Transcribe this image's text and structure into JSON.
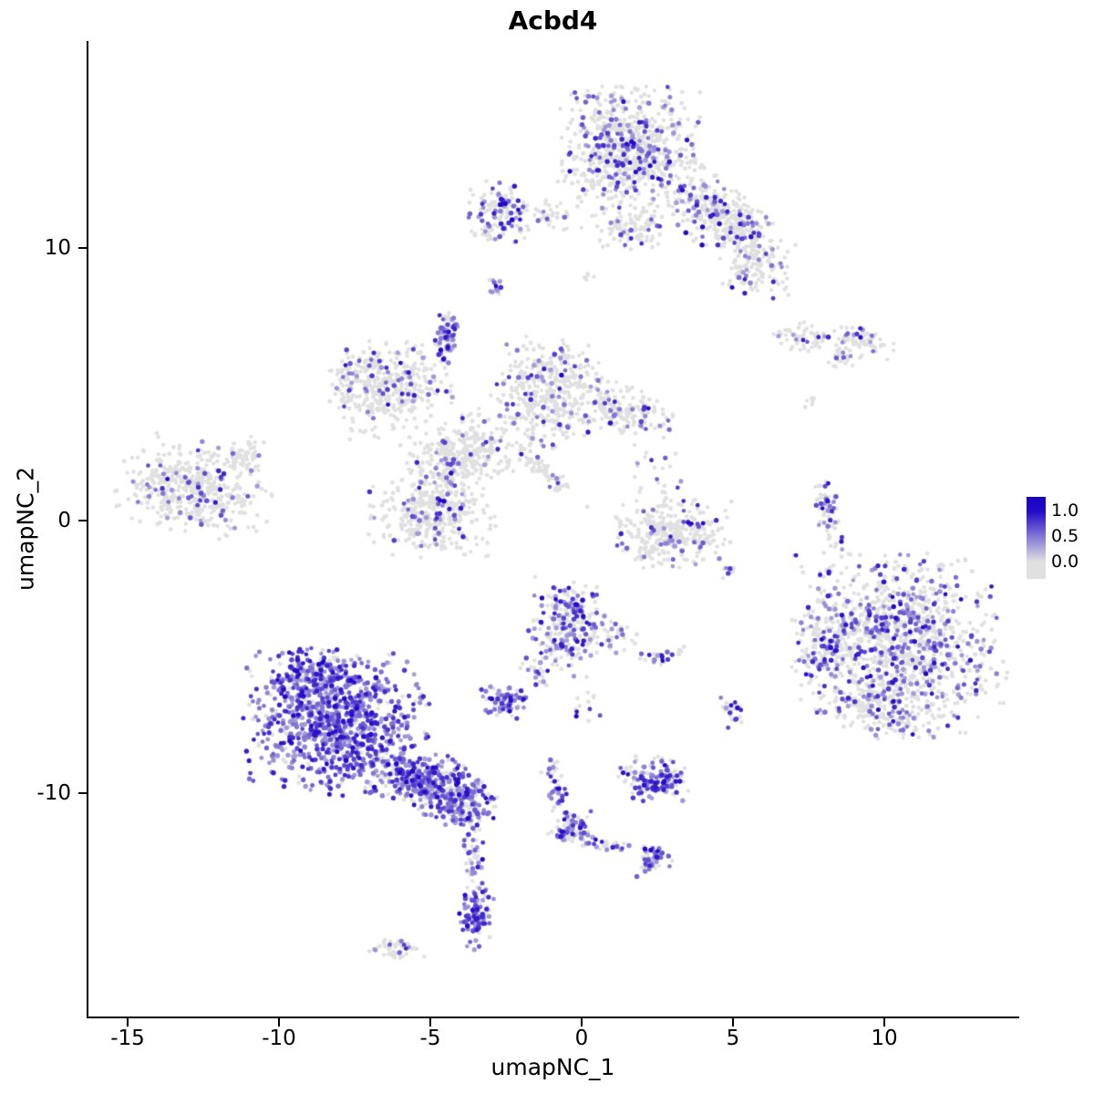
{
  "chart_data": {
    "type": "scatter",
    "title": "Acbd4",
    "xlabel": "umapNC_1",
    "ylabel": "umapNC_2",
    "xlim": [
      -16.3,
      14.4
    ],
    "ylim": [
      -18.2,
      17.6
    ],
    "x_ticks": [
      -15,
      -10,
      -5,
      0,
      5,
      10
    ],
    "y_ticks": [
      -10,
      0,
      10
    ],
    "grid": false,
    "point_color_low": "#E0E0E0",
    "point_color_high": "#2308C8",
    "legend": {
      "position": "right",
      "labels": [
        "1.0",
        "0.5",
        "0.0"
      ],
      "low_color": "#E0E0E0",
      "high_color": "#2308C8"
    },
    "clusters": [
      {
        "name": "top-center-lobe",
        "cx": 1.6,
        "cy": 13.6,
        "sx": 1.05,
        "sy": 1.05,
        "rot": 0,
        "n": 750,
        "p": 0.22
      },
      {
        "name": "top-right-arm",
        "cx": 4.7,
        "cy": 11.0,
        "sx": 1.1,
        "sy": 0.55,
        "rot": -40,
        "n": 380,
        "p": 0.18
      },
      {
        "name": "top-right-arm-end",
        "cx": 5.7,
        "cy": 9.3,
        "sx": 0.5,
        "sy": 0.55,
        "rot": 0,
        "n": 110,
        "p": 0.2
      },
      {
        "name": "top-lower-neck",
        "cx": 1.6,
        "cy": 10.7,
        "sx": 0.5,
        "sy": 0.4,
        "rot": 0,
        "n": 100,
        "p": 0.15
      },
      {
        "name": "top-left-satellite",
        "cx": -2.7,
        "cy": 11.2,
        "sx": 0.45,
        "sy": 0.55,
        "rot": 0,
        "n": 140,
        "p": 0.3
      },
      {
        "name": "top-bridge",
        "cx": -1.2,
        "cy": 11.2,
        "sx": 0.7,
        "sy": 0.3,
        "rot": 0,
        "n": 50,
        "p": 0.2
      },
      {
        "name": "tiny-purple-dot",
        "cx": -2.85,
        "cy": 8.65,
        "sx": 0.12,
        "sy": 0.2,
        "rot": 0,
        "n": 12,
        "p": 0.6
      },
      {
        "name": "tiny-grey-pair",
        "cx": 0.2,
        "cy": 8.9,
        "sx": 0.1,
        "sy": 0.12,
        "rot": 0,
        "n": 5,
        "p": 0
      },
      {
        "name": "right-small-a",
        "cx": 7.3,
        "cy": 6.7,
        "sx": 0.5,
        "sy": 0.25,
        "rot": -8,
        "n": 55,
        "p": 0.15
      },
      {
        "name": "right-small-b",
        "cx": 9.3,
        "cy": 6.6,
        "sx": 0.55,
        "sy": 0.3,
        "rot": -8,
        "n": 65,
        "p": 0.18
      },
      {
        "name": "right-small-c",
        "cx": 8.55,
        "cy": 5.95,
        "sx": 0.2,
        "sy": 0.18,
        "rot": 0,
        "n": 20,
        "p": 0.15
      },
      {
        "name": "right-tiny-dots",
        "cx": 7.6,
        "cy": 4.4,
        "sx": 0.12,
        "sy": 0.18,
        "rot": 0,
        "n": 6,
        "p": 0
      },
      {
        "name": "central-left-lobe",
        "cx": -6.4,
        "cy": 4.9,
        "sx": 0.9,
        "sy": 0.75,
        "rot": 15,
        "n": 380,
        "p": 0.13
      },
      {
        "name": "central-spike",
        "cx": -4.5,
        "cy": 6.8,
        "sx": 0.18,
        "sy": 0.5,
        "rot": 0,
        "n": 90,
        "p": 0.55
      },
      {
        "name": "central-mid-lobe",
        "cx": -1.1,
        "cy": 4.7,
        "sx": 0.85,
        "sy": 0.9,
        "rot": 0,
        "n": 420,
        "p": 0.12
      },
      {
        "name": "central-right-arm",
        "cx": 1.4,
        "cy": 4.1,
        "sx": 0.75,
        "sy": 0.4,
        "rot": -12,
        "n": 160,
        "p": 0.15
      },
      {
        "name": "central-connector",
        "cx": -3.9,
        "cy": 2.5,
        "sx": 0.85,
        "sy": 0.6,
        "rot": 20,
        "n": 300,
        "p": 0.1
      },
      {
        "name": "central-lower-lobe",
        "cx": -4.9,
        "cy": 0.3,
        "sx": 0.95,
        "sy": 0.75,
        "rot": 0,
        "n": 380,
        "p": 0.14
      },
      {
        "name": "central-diag-strand",
        "cx": -1.3,
        "cy": 1.9,
        "sx": 0.9,
        "sy": 0.15,
        "rot": -45,
        "n": 70,
        "p": 0.08
      },
      {
        "name": "central-upper-left-arm",
        "cx": -7.4,
        "cy": 5.5,
        "sx": 0.55,
        "sy": 0.4,
        "rot": 30,
        "n": 60,
        "p": 0.12
      },
      {
        "name": "far-left-lobe",
        "cx": -12.8,
        "cy": 1.2,
        "sx": 1.15,
        "sy": 0.75,
        "rot": -12,
        "n": 480,
        "p": 0.12
      },
      {
        "name": "far-left-arm",
        "cx": -11.1,
        "cy": 2.4,
        "sx": 0.4,
        "sy": 0.25,
        "rot": 40,
        "n": 40,
        "p": 0.1
      },
      {
        "name": "mid-right-crescent",
        "cx": 3.0,
        "cy": -0.5,
        "sx": 0.85,
        "sy": 0.55,
        "rot": 0,
        "n": 320,
        "p": 0.12
      },
      {
        "name": "mid-right-sparse",
        "cx": 2.4,
        "cy": 1.6,
        "sx": 0.5,
        "sy": 0.9,
        "rot": 0,
        "n": 35,
        "p": 0.25
      },
      {
        "name": "right-strip",
        "cx": 8.2,
        "cy": 0.2,
        "sx": 0.18,
        "sy": 0.75,
        "rot": 8,
        "n": 70,
        "p": 0.35
      },
      {
        "name": "right-strip-tiny",
        "cx": 8.0,
        "cy": -1.9,
        "sx": 0.13,
        "sy": 0.13,
        "rot": 0,
        "n": 8,
        "p": 0.3
      },
      {
        "name": "right-large-lobe",
        "cx": 10.5,
        "cy": -4.6,
        "sx": 1.55,
        "sy": 1.5,
        "rot": 0,
        "n": 1100,
        "p": 0.28
      },
      {
        "name": "right-large-left-edge",
        "cx": 8.1,
        "cy": -4.5,
        "sx": 0.45,
        "sy": 0.95,
        "rot": 0,
        "n": 150,
        "p": 0.3
      },
      {
        "name": "right-large-bottom",
        "cx": 9.9,
        "cy": -7.0,
        "sx": 0.7,
        "sy": 0.4,
        "rot": -20,
        "n": 120,
        "p": 0.3
      },
      {
        "name": "bottom-left-main",
        "cx": -8.1,
        "cy": -7.4,
        "sx": 1.35,
        "sy": 1.2,
        "rot": 0,
        "n": 950,
        "p": 0.78
      },
      {
        "name": "bottom-left-top",
        "cx": -8.8,
        "cy": -5.6,
        "sx": 0.7,
        "sy": 0.45,
        "rot": 0,
        "n": 170,
        "p": 0.7
      },
      {
        "name": "bottom-left-right-tail",
        "cx": -5.1,
        "cy": -9.6,
        "sx": 1.1,
        "sy": 0.5,
        "rot": -20,
        "n": 420,
        "p": 0.72
      },
      {
        "name": "bottom-left-tip",
        "cx": -3.9,
        "cy": -10.5,
        "sx": 0.45,
        "sy": 0.35,
        "rot": 0,
        "n": 110,
        "p": 0.6
      },
      {
        "name": "thin-tail-strand",
        "cx": -3.55,
        "cy": -12.4,
        "sx": 0.16,
        "sy": 0.85,
        "rot": 4,
        "n": 55,
        "p": 0.5
      },
      {
        "name": "thin-tail-clump",
        "cx": -3.45,
        "cy": -14.6,
        "sx": 0.28,
        "sy": 0.5,
        "rot": 0,
        "n": 100,
        "p": 0.75
      },
      {
        "name": "center-small-lobe",
        "cx": -0.5,
        "cy": -3.9,
        "sx": 0.55,
        "sy": 0.8,
        "rot": 0,
        "n": 230,
        "p": 0.5
      },
      {
        "name": "center-small-right",
        "cx": 0.9,
        "cy": -4.3,
        "sx": 0.45,
        "sy": 0.35,
        "rot": 0,
        "n": 45,
        "p": 0.3
      },
      {
        "name": "small-clump-left",
        "cx": -2.5,
        "cy": -6.65,
        "sx": 0.4,
        "sy": 0.28,
        "rot": 0,
        "n": 90,
        "p": 0.6
      },
      {
        "name": "kl-connector",
        "cx": -1.6,
        "cy": -5.5,
        "sx": 0.45,
        "sy": 0.2,
        "rot": -40,
        "n": 22,
        "p": 0.4
      },
      {
        "name": "small-pair-a",
        "cx": 2.45,
        "cy": -4.95,
        "sx": 0.24,
        "sy": 0.16,
        "rot": 0,
        "n": 22,
        "p": 0.55
      },
      {
        "name": "small-pair-b",
        "cx": 3.2,
        "cy": -4.8,
        "sx": 0.1,
        "sy": 0.1,
        "rot": 0,
        "n": 6,
        "p": 0.2
      },
      {
        "name": "bottom-center-clump",
        "cx": 2.4,
        "cy": -9.5,
        "sx": 0.55,
        "sy": 0.4,
        "rot": 0,
        "n": 150,
        "p": 0.55
      },
      {
        "name": "small-col",
        "cx": 4.95,
        "cy": -7.0,
        "sx": 0.18,
        "sy": 0.33,
        "rot": 0,
        "n": 30,
        "p": 0.4
      },
      {
        "name": "strand-1",
        "cx": -0.85,
        "cy": -9.7,
        "sx": 0.18,
        "sy": 0.65,
        "rot": 10,
        "n": 45,
        "p": 0.5
      },
      {
        "name": "strand-mid-clump",
        "cx": -0.25,
        "cy": -11.3,
        "sx": 0.28,
        "sy": 0.28,
        "rot": 0,
        "n": 55,
        "p": 0.6
      },
      {
        "name": "strand-2",
        "cx": 0.9,
        "cy": -11.9,
        "sx": 1.0,
        "sy": 0.13,
        "rot": -14,
        "n": 55,
        "p": 0.45
      },
      {
        "name": "strand-2-end",
        "cx": 2.3,
        "cy": -12.5,
        "sx": 0.28,
        "sy": 0.25,
        "rot": 0,
        "n": 45,
        "p": 0.6
      },
      {
        "name": "bottom-grey-clump",
        "cx": -6.1,
        "cy": -15.7,
        "sx": 0.4,
        "sy": 0.22,
        "rot": 0,
        "n": 55,
        "p": 0.08
      },
      {
        "name": "misc-dots-a",
        "cx": 4.9,
        "cy": -1.9,
        "sx": 0.12,
        "sy": 0.18,
        "rot": 0,
        "n": 8,
        "p": 0.4
      },
      {
        "name": "misc-sparse-b",
        "cx": 0.1,
        "cy": -6.8,
        "sx": 0.28,
        "sy": 0.28,
        "rot": 0,
        "n": 12,
        "p": 0.3
      }
    ]
  }
}
